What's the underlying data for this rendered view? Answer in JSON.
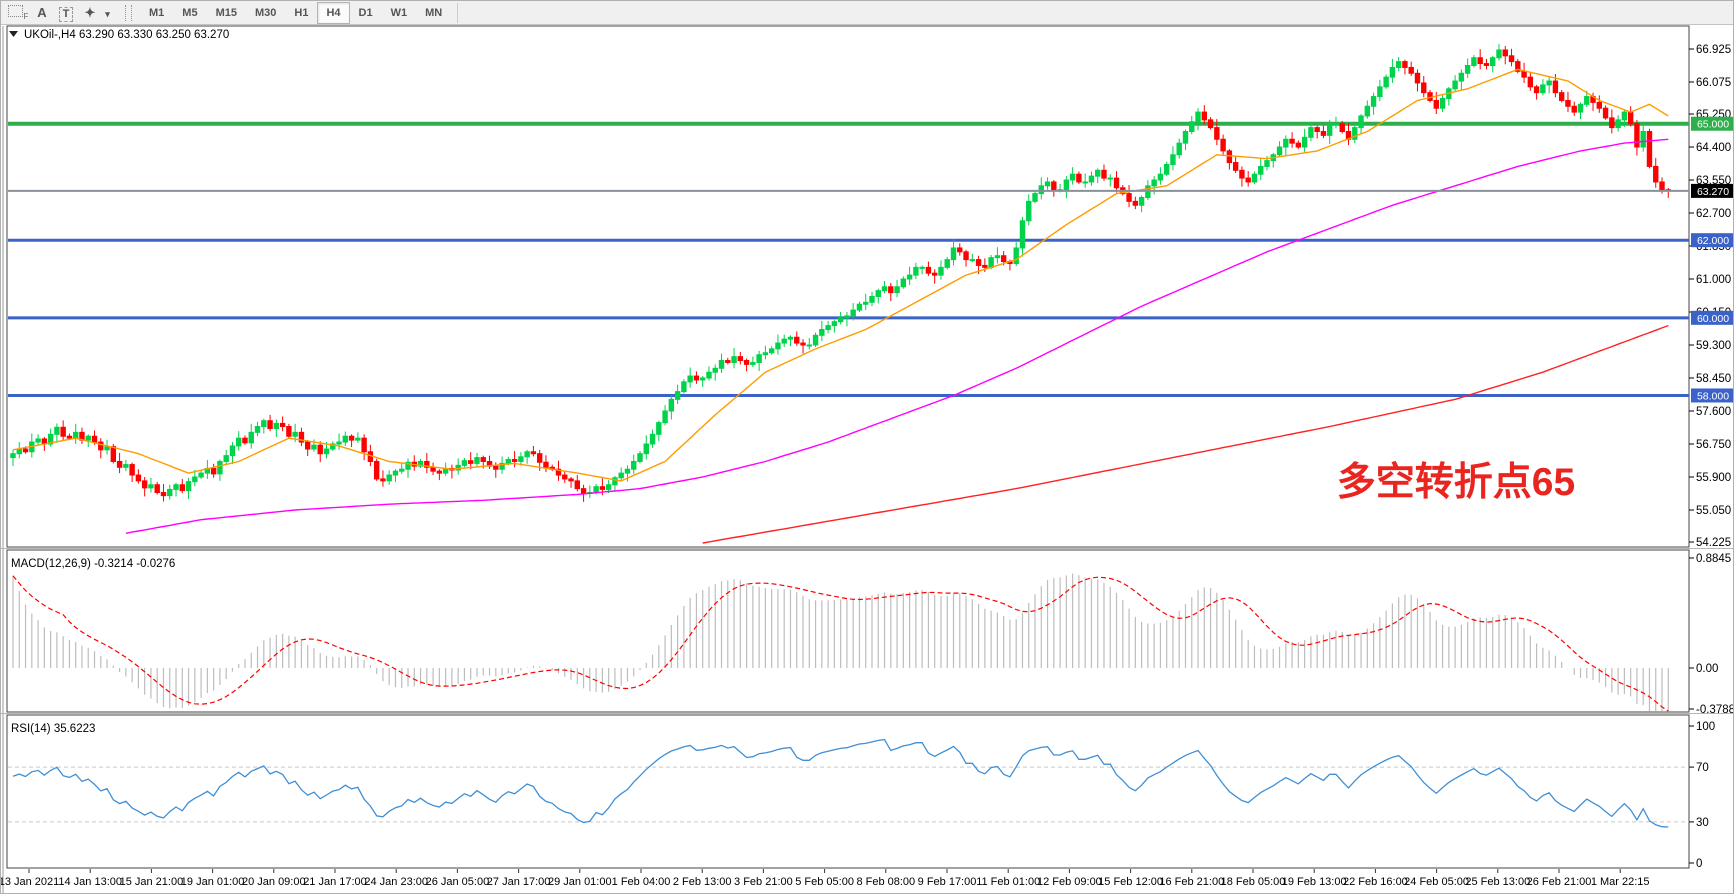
{
  "toolbar": {
    "tools": [
      {
        "name": "chart-grid-icon",
        "glyph": "F",
        "style": "grid"
      },
      {
        "name": "text-label-tool-icon",
        "glyph": "A",
        "style": "plain"
      },
      {
        "name": "text-tool-icon",
        "glyph": "T",
        "style": "boxed"
      },
      {
        "name": "arrows-tool-icon",
        "glyph": "✦",
        "style": "plain"
      },
      {
        "name": "arrows-dropdown-caret-icon",
        "glyph": "▾",
        "style": "caret"
      }
    ],
    "timeframes": [
      "M1",
      "M5",
      "M15",
      "M30",
      "H1",
      "H4",
      "D1",
      "W1",
      "MN"
    ],
    "active_timeframe": "H4"
  },
  "chart": {
    "title": "UKOil-,H4  63.290 63.330 63.250 63.270",
    "annotation": {
      "text": "多空转折点65",
      "color": "#e8251f"
    }
  },
  "macd": {
    "label": "MACD(12,26,9) -0.3214 -0.0276",
    "axis_labels": [
      "0.8845",
      "0.00",
      "-0.3788"
    ],
    "axis_values": [
      0.8845,
      0,
      -0.3788
    ]
  },
  "rsi": {
    "label": "RSI(14) 35.6223",
    "axis_labels": [
      "100",
      "70",
      "30",
      "0"
    ],
    "axis_values": [
      100,
      70,
      30,
      0
    ],
    "levels": [
      70,
      30
    ]
  },
  "chart_data": {
    "type": "candlestick",
    "symbol": "UKOil-",
    "timeframe": "H4",
    "price_ticks": [
      66.925,
      66.075,
      65.25,
      64.4,
      63.55,
      62.7,
      61.85,
      61.0,
      60.15,
      59.3,
      58.45,
      57.6,
      56.75,
      55.9,
      55.05,
      54.225
    ],
    "ylim": [
      54.225,
      67.52
    ],
    "open_first": 56.4,
    "closes": [
      56.5,
      56.62,
      56.55,
      56.8,
      56.88,
      56.75,
      57.0,
      57.18,
      56.95,
      56.9,
      57.05,
      56.85,
      56.95,
      56.8,
      56.6,
      56.68,
      56.3,
      56.15,
      56.22,
      55.95,
      55.8,
      55.62,
      55.7,
      55.5,
      55.42,
      55.58,
      55.7,
      55.55,
      55.78,
      55.9,
      56.0,
      56.12,
      55.98,
      56.3,
      56.45,
      56.7,
      56.9,
      56.78,
      57.05,
      57.2,
      57.35,
      57.15,
      57.28,
      57.2,
      56.95,
      57.05,
      56.8,
      56.62,
      56.72,
      56.5,
      56.62,
      56.75,
      56.8,
      56.95,
      56.85,
      56.9,
      56.55,
      56.3,
      55.85,
      55.8,
      55.95,
      56.05,
      56.1,
      56.28,
      56.18,
      56.3,
      56.15,
      56.05,
      56.0,
      56.12,
      56.08,
      56.2,
      56.32,
      56.25,
      56.4,
      56.3,
      56.18,
      56.1,
      56.25,
      56.35,
      56.3,
      56.42,
      56.55,
      56.5,
      56.28,
      56.15,
      56.1,
      55.95,
      55.85,
      55.8,
      55.6,
      55.48,
      55.5,
      55.65,
      55.58,
      55.7,
      55.88,
      56.0,
      56.1,
      56.3,
      56.5,
      56.75,
      57.0,
      57.3,
      57.6,
      57.9,
      58.1,
      58.35,
      58.5,
      58.4,
      58.45,
      58.6,
      58.7,
      58.9,
      58.85,
      59.0,
      58.9,
      58.8,
      58.85,
      59.05,
      59.1,
      59.2,
      59.35,
      59.45,
      59.5,
      59.35,
      59.3,
      59.3,
      59.55,
      59.7,
      59.8,
      59.9,
      60.0,
      60.05,
      60.2,
      60.35,
      60.4,
      60.55,
      60.7,
      60.8,
      60.65,
      60.8,
      61.0,
      61.1,
      61.3,
      61.3,
      61.15,
      61.1,
      61.3,
      61.5,
      61.8,
      61.7,
      61.5,
      61.5,
      61.35,
      61.3,
      61.55,
      61.6,
      61.45,
      61.4,
      61.8,
      62.5,
      63.0,
      63.2,
      63.4,
      63.5,
      63.3,
      63.3,
      63.55,
      63.7,
      63.5,
      63.5,
      63.65,
      63.8,
      63.6,
      63.6,
      63.35,
      63.2,
      63.0,
      62.9,
      63.1,
      63.4,
      63.55,
      63.7,
      63.95,
      64.2,
      64.5,
      64.8,
      65.05,
      65.3,
      65.1,
      64.9,
      64.6,
      64.3,
      64.0,
      63.8,
      63.6,
      63.5,
      63.7,
      63.9,
      64.05,
      64.2,
      64.4,
      64.6,
      64.5,
      64.4,
      64.65,
      64.9,
      64.8,
      64.7,
      65.0,
      65.0,
      64.8,
      64.6,
      64.9,
      65.2,
      65.45,
      65.7,
      65.95,
      66.2,
      66.45,
      66.6,
      66.45,
      66.3,
      66.05,
      65.8,
      65.6,
      65.4,
      65.65,
      65.9,
      66.1,
      66.3,
      66.5,
      66.7,
      66.55,
      66.5,
      66.7,
      66.9,
      66.75,
      66.6,
      66.35,
      66.2,
      65.95,
      65.8,
      66.0,
      66.1,
      65.8,
      65.6,
      65.45,
      65.3,
      65.5,
      65.7,
      65.55,
      65.4,
      65.15,
      64.9,
      65.1,
      65.3,
      65.0,
      64.4,
      64.8,
      63.9,
      63.5,
      63.3,
      63.27
    ],
    "colors": {
      "up": "#00d24b",
      "down": "#ff0000",
      "macd_hist": "#bdbdbd",
      "macd_signal": "#ff0000",
      "rsi_line": "#3f8fd6"
    },
    "hlines": [
      {
        "price": 65.0,
        "label": "65.000",
        "color": "#2fae4c",
        "width": 4
      },
      {
        "price": 62.0,
        "label": "62.000",
        "color": "#3b62c8",
        "width": 3
      },
      {
        "price": 60.0,
        "label": "60.000",
        "color": "#3b62c8",
        "width": 3
      },
      {
        "price": 58.0,
        "label": "58.000",
        "color": "#3b62c8",
        "width": 3
      }
    ],
    "current_price": {
      "value": 63.27,
      "label": "63.270",
      "line_color": "#8a9099",
      "badge_bg": "#000000"
    },
    "time_labels": [
      "13 Jan 2021",
      "14 Jan 13:00",
      "15 Jan 21:00",
      "19 Jan 01:00",
      "20 Jan 09:00",
      "21 Jan 17:00",
      "24 Jan 23:00",
      "26 Jan 05:00",
      "27 Jan 17:00",
      "29 Jan 01:00",
      "1 Feb 04:00",
      "2 Feb 13:00",
      "3 Feb 21:00",
      "5 Feb 05:00",
      "8 Feb 08:00",
      "9 Feb 17:00",
      "11 Feb 01:00",
      "12 Feb 09:00",
      "15 Feb 12:00",
      "16 Feb 21:00",
      "18 Feb 05:00",
      "19 Feb 13:00",
      "22 Feb 16:00",
      "24 Feb 05:00",
      "25 Feb 13:00",
      "26 Feb 21:00",
      "1 Mar 22:15"
    ],
    "ma_series": [
      {
        "name": "ma-fast",
        "color": "#ff9c00",
        "points": [
          [
            0,
            56.6
          ],
          [
            10,
            56.9
          ],
          [
            20,
            56.5
          ],
          [
            28,
            56.0
          ],
          [
            36,
            56.3
          ],
          [
            44,
            56.9
          ],
          [
            52,
            56.7
          ],
          [
            60,
            56.3
          ],
          [
            70,
            56.1
          ],
          [
            80,
            56.25
          ],
          [
            90,
            56.0
          ],
          [
            97,
            55.8
          ],
          [
            104,
            56.3
          ],
          [
            112,
            57.5
          ],
          [
            120,
            58.6
          ],
          [
            128,
            59.2
          ],
          [
            136,
            59.7
          ],
          [
            144,
            60.4
          ],
          [
            152,
            61.1
          ],
          [
            160,
            61.5
          ],
          [
            168,
            62.4
          ],
          [
            176,
            63.2
          ],
          [
            184,
            63.4
          ],
          [
            192,
            64.2
          ],
          [
            200,
            64.1
          ],
          [
            208,
            64.3
          ],
          [
            216,
            64.8
          ],
          [
            224,
            65.6
          ],
          [
            232,
            65.9
          ],
          [
            240,
            66.4
          ],
          [
            248,
            66.1
          ],
          [
            253,
            65.6
          ],
          [
            258,
            65.3
          ],
          [
            261,
            65.5
          ],
          [
            264,
            65.2
          ]
        ]
      },
      {
        "name": "ma-mid",
        "color": "#ff00ff",
        "points": [
          [
            18,
            54.45
          ],
          [
            30,
            54.8
          ],
          [
            45,
            55.05
          ],
          [
            60,
            55.2
          ],
          [
            75,
            55.3
          ],
          [
            90,
            55.45
          ],
          [
            100,
            55.6
          ],
          [
            110,
            55.9
          ],
          [
            120,
            56.3
          ],
          [
            130,
            56.8
          ],
          [
            140,
            57.4
          ],
          [
            150,
            58.0
          ],
          [
            160,
            58.7
          ],
          [
            170,
            59.5
          ],
          [
            180,
            60.3
          ],
          [
            190,
            61.0
          ],
          [
            200,
            61.7
          ],
          [
            210,
            62.3
          ],
          [
            220,
            62.9
          ],
          [
            230,
            63.4
          ],
          [
            240,
            63.9
          ],
          [
            250,
            64.3
          ],
          [
            257,
            64.5
          ],
          [
            264,
            64.6
          ]
        ]
      },
      {
        "name": "ma-slow",
        "color": "#ff2222",
        "points": [
          [
            110,
            54.2
          ],
          [
            135,
            54.9
          ],
          [
            160,
            55.6
          ],
          [
            185,
            56.4
          ],
          [
            210,
            57.2
          ],
          [
            230,
            57.9
          ],
          [
            244,
            58.6
          ],
          [
            254,
            59.2
          ],
          [
            264,
            59.8
          ]
        ]
      }
    ]
  }
}
